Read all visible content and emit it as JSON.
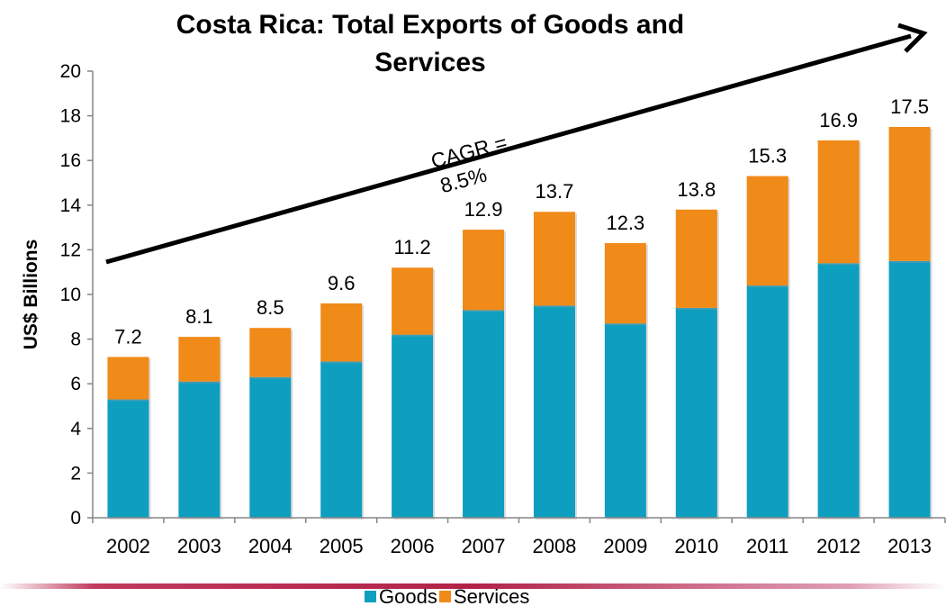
{
  "chart_data": {
    "type": "bar",
    "stacked": true,
    "title_line1": "Costa Rica: Total Exports of Goods and",
    "title_line2": "Services",
    "ylabel": "US$ Billions",
    "xlabel": "",
    "ylim": [
      0,
      20
    ],
    "yticks": [
      0,
      2,
      4,
      6,
      8,
      10,
      12,
      14,
      16,
      18,
      20
    ],
    "categories": [
      "2002",
      "2003",
      "2004",
      "2005",
      "2006",
      "2007",
      "2008",
      "2009",
      "2010",
      "2011",
      "2012",
      "2013"
    ],
    "series": [
      {
        "name": "Goods",
        "color": "#0e9ec0",
        "values": [
          5.3,
          6.1,
          6.3,
          7.0,
          8.2,
          9.3,
          9.5,
          8.7,
          9.4,
          10.4,
          11.4,
          11.5
        ]
      },
      {
        "name": "Services",
        "color": "#f08a18",
        "values": [
          1.9,
          2.0,
          2.2,
          2.6,
          3.0,
          3.6,
          4.2,
          3.6,
          4.4,
          4.9,
          5.5,
          6.0
        ]
      }
    ],
    "totals": [
      "7.2",
      "8.1",
      "8.5",
      "9.6",
      "11.2",
      "12.9",
      "13.7",
      "12.3",
      "13.8",
      "15.3",
      "16.9",
      "17.5"
    ],
    "annotation": {
      "line1": "CAGR =",
      "line2": "8.5%"
    },
    "grid": false,
    "legend_position": "bottom"
  }
}
